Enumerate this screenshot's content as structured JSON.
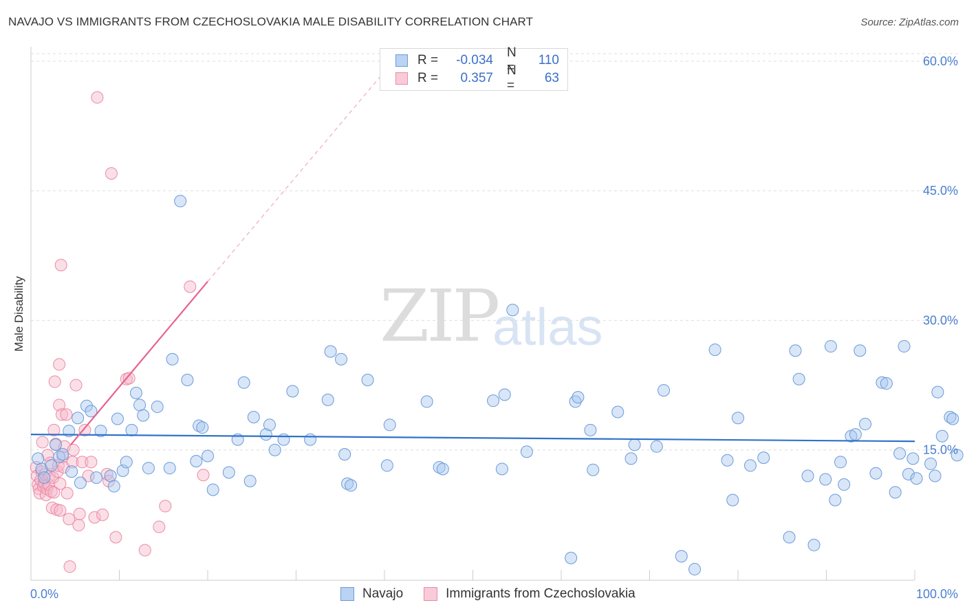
{
  "header": {
    "title": "NAVAJO VS IMMIGRANTS FROM CZECHOSLOVAKIA MALE DISABILITY CORRELATION CHART",
    "source": "Source: ZipAtlas.com"
  },
  "watermark": {
    "zip": "ZIP",
    "atlas": "atlas"
  },
  "legend": {
    "r_label": "R =",
    "n_label": "N =",
    "series": [
      {
        "name": "Navajo",
        "r": "-0.034",
        "n": "110"
      },
      {
        "name": "Immigrants from Czechoslovakia",
        "r": "0.357",
        "n": "63"
      }
    ]
  },
  "colors": {
    "blue_fill": "#a9c8ef",
    "blue_stroke": "#6a9ad8",
    "blue_line": "#2f72c8",
    "pink_fill": "#f6b7c9",
    "pink_stroke": "#e98aa6",
    "pink_line": "#e8628e",
    "grid": "#dddddd",
    "tick_text": "#4a7fd0"
  },
  "chart_data": {
    "type": "scatter",
    "title": "NAVAJO VS IMMIGRANTS FROM CZECHOSLOVAKIA MALE DISABILITY CORRELATION CHART",
    "xlabel": "",
    "ylabel": "Male Disability",
    "xlim": [
      0,
      100
    ],
    "ylim": [
      0,
      61.5
    ],
    "x_tick_labels": [
      "0.0%",
      "100.0%"
    ],
    "y_ticks": [
      15,
      30,
      45,
      60
    ],
    "y_tick_labels": [
      "15.0%",
      "30.0%",
      "45.0%",
      "60.0%"
    ],
    "grid": true,
    "series": [
      {
        "name": "Navajo",
        "color": "blue",
        "points": [
          [
            0.8,
            14.0
          ],
          [
            1.2,
            12.8
          ],
          [
            1.5,
            11.8
          ],
          [
            2.3,
            13.2
          ],
          [
            2.8,
            15.6
          ],
          [
            3.2,
            14.2
          ],
          [
            3.6,
            14.5
          ],
          [
            4.3,
            17.2
          ],
          [
            4.6,
            12.5
          ],
          [
            5.3,
            18.7
          ],
          [
            5.6,
            11.2
          ],
          [
            6.3,
            20.1
          ],
          [
            6.8,
            19.5
          ],
          [
            7.4,
            11.8
          ],
          [
            7.9,
            17.2
          ],
          [
            9.0,
            12.0
          ],
          [
            9.4,
            10.8
          ],
          [
            9.8,
            18.6
          ],
          [
            10.4,
            12.6
          ],
          [
            10.8,
            13.6
          ],
          [
            11.4,
            17.3
          ],
          [
            11.9,
            21.6
          ],
          [
            12.3,
            20.2
          ],
          [
            12.7,
            19.0
          ],
          [
            13.3,
            12.9
          ],
          [
            14.3,
            20.0
          ],
          [
            15.7,
            12.9
          ],
          [
            16.0,
            25.5
          ],
          [
            16.9,
            43.8
          ],
          [
            17.7,
            23.1
          ],
          [
            18.7,
            13.7
          ],
          [
            19.0,
            17.8
          ],
          [
            19.4,
            17.6
          ],
          [
            20.0,
            14.3
          ],
          [
            20.6,
            10.4
          ],
          [
            22.4,
            12.4
          ],
          [
            23.4,
            16.2
          ],
          [
            24.1,
            22.8
          ],
          [
            24.8,
            11.4
          ],
          [
            25.2,
            18.8
          ],
          [
            26.6,
            16.8
          ],
          [
            27.0,
            17.9
          ],
          [
            27.6,
            15.0
          ],
          [
            28.6,
            16.2
          ],
          [
            29.6,
            21.8
          ],
          [
            31.6,
            16.2
          ],
          [
            33.6,
            20.8
          ],
          [
            33.9,
            26.4
          ],
          [
            35.1,
            25.5
          ],
          [
            35.5,
            14.5
          ],
          [
            35.8,
            11.1
          ],
          [
            36.2,
            10.9
          ],
          [
            38.1,
            23.1
          ],
          [
            40.3,
            13.2
          ],
          [
            40.6,
            17.9
          ],
          [
            44.8,
            20.6
          ],
          [
            46.2,
            13.0
          ],
          [
            46.6,
            12.8
          ],
          [
            52.3,
            20.7
          ],
          [
            53.3,
            12.8
          ],
          [
            53.6,
            21.4
          ],
          [
            54.5,
            31.2
          ],
          [
            56.1,
            14.8
          ],
          [
            61.1,
            2.5
          ],
          [
            61.6,
            20.6
          ],
          [
            61.9,
            21.1
          ],
          [
            63.3,
            17.3
          ],
          [
            63.6,
            12.7
          ],
          [
            66.4,
            19.4
          ],
          [
            67.9,
            14.0
          ],
          [
            68.3,
            15.6
          ],
          [
            70.8,
            15.4
          ],
          [
            71.6,
            21.9
          ],
          [
            73.6,
            2.7
          ],
          [
            75.1,
            1.2
          ],
          [
            77.4,
            26.6
          ],
          [
            78.8,
            13.8
          ],
          [
            79.4,
            9.2
          ],
          [
            80.0,
            18.7
          ],
          [
            81.4,
            13.2
          ],
          [
            82.9,
            14.1
          ],
          [
            85.8,
            4.9
          ],
          [
            86.5,
            26.5
          ],
          [
            86.9,
            23.2
          ],
          [
            87.9,
            12.0
          ],
          [
            88.6,
            4.0
          ],
          [
            89.9,
            11.6
          ],
          [
            90.5,
            27.0
          ],
          [
            91.0,
            9.2
          ],
          [
            91.6,
            13.6
          ],
          [
            92.0,
            11.0
          ],
          [
            92.8,
            16.6
          ],
          [
            93.3,
            16.8
          ],
          [
            93.8,
            26.5
          ],
          [
            94.4,
            18.0
          ],
          [
            95.6,
            12.3
          ],
          [
            96.3,
            22.8
          ],
          [
            96.8,
            22.7
          ],
          [
            97.8,
            10.1
          ],
          [
            98.3,
            14.6
          ],
          [
            98.8,
            27.0
          ],
          [
            99.3,
            12.2
          ],
          [
            99.8,
            14.0
          ],
          [
            100.2,
            11.7
          ],
          [
            101.8,
            13.4
          ],
          [
            102.3,
            12.0
          ],
          [
            102.6,
            21.7
          ],
          [
            103.1,
            16.6
          ],
          [
            104.0,
            18.8
          ],
          [
            104.3,
            18.6
          ],
          [
            104.8,
            14.4
          ]
        ],
        "trend": {
          "x": [
            0,
            100
          ],
          "y": [
            16.8,
            16.0
          ]
        }
      },
      {
        "name": "Immigrants from Czechoslovakia",
        "color": "pink",
        "points": [
          [
            0.6,
            13.0
          ],
          [
            0.7,
            12.0
          ],
          [
            0.8,
            11.0
          ],
          [
            0.9,
            10.5
          ],
          [
            1.0,
            10.0
          ],
          [
            1.1,
            11.5
          ],
          [
            1.2,
            12.5
          ],
          [
            1.3,
            15.9
          ],
          [
            1.4,
            10.8
          ],
          [
            1.5,
            11.2
          ],
          [
            1.6,
            12.2
          ],
          [
            1.7,
            9.8
          ],
          [
            1.8,
            10.5
          ],
          [
            1.9,
            14.4
          ],
          [
            2.0,
            11.0
          ],
          [
            2.1,
            12.0
          ],
          [
            2.2,
            13.5
          ],
          [
            2.3,
            10.2
          ],
          [
            2.4,
            8.3
          ],
          [
            2.5,
            11.8
          ],
          [
            2.6,
            10.1
          ],
          [
            2.6,
            17.3
          ],
          [
            2.7,
            22.9
          ],
          [
            2.8,
            15.7
          ],
          [
            2.9,
            8.1
          ],
          [
            3.0,
            12.5
          ],
          [
            3.1,
            13.2
          ],
          [
            3.2,
            20.2
          ],
          [
            3.2,
            24.9
          ],
          [
            3.3,
            8.0
          ],
          [
            3.3,
            11.1
          ],
          [
            3.4,
            36.4
          ],
          [
            3.5,
            19.1
          ],
          [
            3.6,
            14.2
          ],
          [
            3.7,
            13.0
          ],
          [
            3.8,
            15.4
          ],
          [
            4.0,
            19.1
          ],
          [
            4.1,
            10.0
          ],
          [
            4.3,
            7.0
          ],
          [
            4.4,
            1.5
          ],
          [
            4.7,
            13.6
          ],
          [
            4.8,
            15.0
          ],
          [
            5.1,
            22.5
          ],
          [
            5.4,
            6.3
          ],
          [
            5.5,
            7.6
          ],
          [
            5.8,
            13.6
          ],
          [
            6.1,
            17.3
          ],
          [
            6.5,
            12.0
          ],
          [
            6.8,
            13.6
          ],
          [
            7.2,
            7.2
          ],
          [
            7.5,
            55.8
          ],
          [
            8.1,
            7.5
          ],
          [
            8.6,
            12.2
          ],
          [
            8.8,
            11.4
          ],
          [
            9.1,
            47.0
          ],
          [
            9.6,
            4.9
          ],
          [
            10.8,
            23.2
          ],
          [
            11.1,
            23.3
          ],
          [
            12.9,
            3.4
          ],
          [
            14.5,
            6.1
          ],
          [
            15.2,
            8.5
          ],
          [
            18.0,
            33.9
          ],
          [
            19.5,
            12.1
          ]
        ],
        "trend_solid": {
          "x": [
            4.5,
            20.0
          ],
          "y": [
            15.6,
            34.5
          ]
        },
        "trend_dashed": {
          "x": [
            20.0,
            41.0
          ],
          "y": [
            34.5,
            60.0
          ]
        }
      }
    ]
  }
}
